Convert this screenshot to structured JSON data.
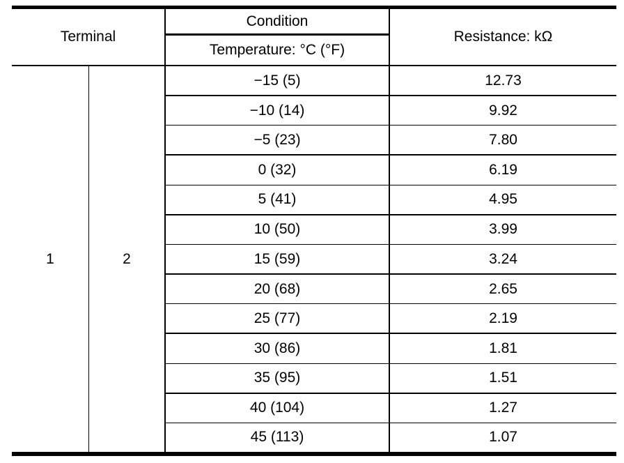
{
  "table": {
    "headers": {
      "terminal": "Terminal",
      "condition": "Condition",
      "temperature": "Temperature: °C (°F)",
      "resistance": "Resistance: kΩ"
    },
    "terminal_left": "1",
    "terminal_right": "2",
    "rows": [
      {
        "temperature": "−15 (5)",
        "resistance": "12.73"
      },
      {
        "temperature": "−10 (14)",
        "resistance": "9.92"
      },
      {
        "temperature": "−5 (23)",
        "resistance": "7.80"
      },
      {
        "temperature": "0 (32)",
        "resistance": "6.19"
      },
      {
        "temperature": "5 (41)",
        "resistance": "4.95"
      },
      {
        "temperature": "10 (50)",
        "resistance": "3.99"
      },
      {
        "temperature": "15 (59)",
        "resistance": "3.24"
      },
      {
        "temperature": "20 (68)",
        "resistance": "2.65"
      },
      {
        "temperature": "25 (77)",
        "resistance": "2.19"
      },
      {
        "temperature": "30 (86)",
        "resistance": "1.81"
      },
      {
        "temperature": "35 (95)",
        "resistance": "1.51"
      },
      {
        "temperature": "40 (104)",
        "resistance": "1.27"
      },
      {
        "temperature": "45 (113)",
        "resistance": "1.07"
      }
    ],
    "colors": {
      "rule": "#000000",
      "background": "#ffffff",
      "text": "#000000"
    }
  }
}
